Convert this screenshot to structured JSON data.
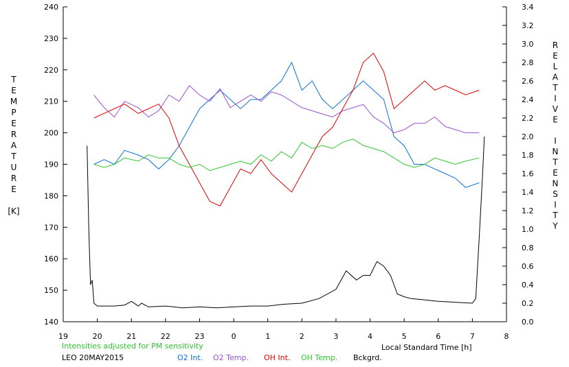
{
  "chart_data": {
    "type": "line",
    "left_axis_label": [
      "T",
      "E",
      "M",
      "P",
      "E",
      "R",
      "A",
      "T",
      "U",
      "R",
      "E",
      "",
      "[K]"
    ],
    "right_axis_label": [
      "R",
      "E",
      "L",
      "A",
      "T",
      "I",
      "V",
      "E",
      "",
      "I",
      "N",
      "T",
      "E",
      "N",
      "S",
      "I",
      "T",
      "Y"
    ],
    "xlabel": "Local Standard Time [h]",
    "note": "Intensities adjusted for PM sensitivity",
    "station": "LEO 20MAY2015",
    "x_tick_labels": [
      "19",
      "20",
      "21",
      "22",
      "23",
      "0",
      "1",
      "2",
      "3",
      "4",
      "5",
      "6",
      "7",
      "8"
    ],
    "x_range": [
      19,
      32
    ],
    "y_left_range": [
      140,
      240
    ],
    "y_left_ticks": [
      "140",
      "150",
      "160",
      "170",
      "180",
      "190",
      "200",
      "210",
      "220",
      "230",
      "240"
    ],
    "y_right_range": [
      0.0,
      3.4
    ],
    "y_right_ticks": [
      "0.0",
      "0.2",
      "0.4",
      "0.6",
      "0.8",
      "1.0",
      "1.2",
      "1.4",
      "1.6",
      "1.8",
      "2.0",
      "2.2",
      "2.4",
      "2.6",
      "2.8",
      "3.0",
      "3.2",
      "3.4"
    ],
    "series": [
      {
        "name": "O2 Int.",
        "color": "#0a6fd4",
        "axis": "right",
        "x": [
          19.9,
          20.2,
          20.5,
          20.8,
          21.2,
          21.5,
          21.8,
          22.1,
          22.4,
          22.7,
          23.0,
          23.3,
          23.6,
          23.9,
          24.2,
          24.5,
          24.8,
          25.1,
          25.4,
          25.7,
          26.0,
          26.3,
          26.6,
          26.9,
          27.2,
          27.5,
          27.8,
          28.1,
          28.4,
          28.7,
          29.0,
          29.3,
          29.6,
          29.9,
          30.2,
          30.5,
          30.8,
          31.2
        ],
        "y": [
          1.7,
          1.75,
          1.7,
          1.85,
          1.8,
          1.75,
          1.65,
          1.75,
          1.9,
          2.1,
          2.3,
          2.4,
          2.5,
          2.4,
          2.3,
          2.4,
          2.4,
          2.5,
          2.6,
          2.8,
          2.5,
          2.6,
          2.4,
          2.3,
          2.4,
          2.5,
          2.6,
          2.5,
          2.4,
          2.0,
          1.9,
          1.7,
          1.7,
          1.65,
          1.6,
          1.55,
          1.45,
          1.5
        ]
      },
      {
        "name": "O2 Temp.",
        "color": "#9a4fd0",
        "axis": "left",
        "x": [
          19.9,
          20.2,
          20.5,
          20.8,
          21.2,
          21.5,
          21.8,
          22.1,
          22.4,
          22.7,
          23.0,
          23.3,
          23.6,
          23.9,
          24.2,
          24.5,
          24.8,
          25.1,
          25.4,
          25.7,
          26.0,
          26.3,
          26.6,
          26.9,
          27.2,
          27.5,
          27.8,
          28.1,
          28.4,
          28.7,
          29.0,
          29.3,
          29.6,
          29.9,
          30.2,
          30.5,
          30.8,
          31.2
        ],
        "y": [
          212,
          208,
          205,
          210,
          208,
          205,
          207,
          212,
          210,
          215,
          212,
          210,
          214,
          208,
          210,
          212,
          210,
          213,
          212,
          210,
          208,
          207,
          206,
          205,
          207,
          208,
          209,
          205,
          203,
          200,
          201,
          203,
          203,
          205,
          202,
          201,
          200,
          200
        ]
      },
      {
        "name": "OH Int.",
        "color": "#e00000",
        "axis": "right",
        "x": [
          19.9,
          20.2,
          20.5,
          20.8,
          21.2,
          21.5,
          21.8,
          22.1,
          22.4,
          22.7,
          23.0,
          23.3,
          23.6,
          23.9,
          24.2,
          24.5,
          24.8,
          25.1,
          25.4,
          25.7,
          26.0,
          26.3,
          26.6,
          26.9,
          27.2,
          27.5,
          27.8,
          28.1,
          28.4,
          28.7,
          29.0,
          29.3,
          29.6,
          29.9,
          30.2,
          30.5,
          30.8,
          31.2
        ],
        "y": [
          2.2,
          2.25,
          2.3,
          2.35,
          2.25,
          2.3,
          2.35,
          2.2,
          1.9,
          1.7,
          1.5,
          1.3,
          1.25,
          1.45,
          1.65,
          1.6,
          1.75,
          1.6,
          1.5,
          1.4,
          1.6,
          1.8,
          2.0,
          2.1,
          2.3,
          2.5,
          2.8,
          2.9,
          2.7,
          2.3,
          2.4,
          2.5,
          2.6,
          2.5,
          2.55,
          2.5,
          2.45,
          2.5
        ]
      },
      {
        "name": "OH Temp.",
        "color": "#2ec42e",
        "axis": "left",
        "x": [
          19.9,
          20.2,
          20.5,
          20.8,
          21.2,
          21.5,
          21.8,
          22.1,
          22.4,
          22.7,
          23.0,
          23.3,
          23.6,
          23.9,
          24.2,
          24.5,
          24.8,
          25.1,
          25.4,
          25.7,
          26.0,
          26.3,
          26.6,
          26.9,
          27.2,
          27.5,
          27.8,
          28.1,
          28.4,
          28.7,
          29.0,
          29.3,
          29.6,
          29.9,
          30.2,
          30.5,
          30.8,
          31.2
        ],
        "y": [
          190,
          189,
          190,
          192,
          191,
          193,
          192,
          192,
          190,
          189,
          190,
          188,
          189,
          190,
          191,
          190,
          193,
          191,
          194,
          192,
          197,
          195,
          196,
          195,
          197,
          198,
          196,
          195,
          194,
          192,
          190,
          189,
          190,
          192,
          191,
          190,
          191,
          192
        ]
      },
      {
        "name": "Bckgrd.",
        "color": "#000000",
        "axis": "right",
        "x": [
          19.7,
          19.75,
          19.8,
          19.85,
          19.9,
          20.0,
          20.5,
          20.8,
          21.0,
          21.2,
          21.3,
          21.5,
          22.0,
          22.5,
          23.0,
          23.5,
          24.0,
          24.5,
          25.0,
          25.5,
          26.0,
          26.5,
          27.0,
          27.3,
          27.6,
          27.8,
          28.0,
          28.2,
          28.4,
          28.6,
          28.8,
          29.0,
          29.2,
          29.5,
          30.0,
          30.5,
          31.0,
          31.1,
          31.2,
          31.3,
          31.35
        ],
        "y": [
          1.9,
          1.0,
          0.4,
          0.45,
          0.2,
          0.17,
          0.17,
          0.18,
          0.22,
          0.17,
          0.2,
          0.16,
          0.17,
          0.15,
          0.16,
          0.15,
          0.16,
          0.17,
          0.17,
          0.19,
          0.2,
          0.25,
          0.35,
          0.55,
          0.45,
          0.5,
          0.5,
          0.65,
          0.6,
          0.5,
          0.3,
          0.27,
          0.25,
          0.24,
          0.22,
          0.21,
          0.2,
          0.25,
          0.9,
          1.6,
          2.0
        ]
      }
    ]
  }
}
